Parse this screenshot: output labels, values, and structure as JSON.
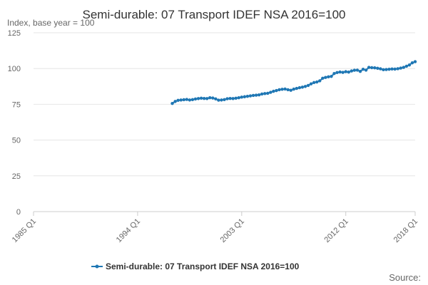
{
  "chart_data": {
    "type": "line",
    "title": "Semi-durable: 07 Transport IDEF NSA 2016=100",
    "y_label": "Index, base year = 100",
    "source": "Source:",
    "categories": [
      "1985 Q1",
      null,
      null,
      null,
      null,
      null,
      null,
      null,
      null,
      null,
      null,
      null,
      null,
      null,
      null,
      null,
      null,
      null,
      null,
      null,
      null,
      null,
      null,
      null,
      null,
      null,
      null,
      null,
      null,
      null,
      null,
      null,
      null,
      null,
      null,
      null,
      "1994 Q1",
      null,
      null,
      null,
      null,
      null,
      null,
      null,
      null,
      null,
      null,
      null,
      null,
      null,
      null,
      null,
      null,
      null,
      null,
      null,
      null,
      null,
      null,
      null,
      null,
      null,
      null,
      null,
      null,
      null,
      null,
      null,
      null,
      null,
      null,
      null,
      "2003 Q1",
      null,
      null,
      null,
      null,
      null,
      null,
      null,
      null,
      null,
      null,
      null,
      null,
      null,
      null,
      null,
      null,
      null,
      null,
      null,
      null,
      null,
      null,
      null,
      null,
      null,
      null,
      null,
      null,
      null,
      null,
      null,
      null,
      null,
      null,
      null,
      "2012 Q1",
      null,
      null,
      null,
      null,
      null,
      null,
      null,
      null,
      null,
      null,
      null,
      null,
      null,
      null,
      null,
      null,
      null,
      null,
      null,
      null,
      null,
      null,
      null,
      "2018 Q1"
    ],
    "series": [
      {
        "name": "Semi-durable: 07 Transport IDEF NSA 2016=100",
        "color": "#1f77b4",
        "values": [
          null,
          null,
          null,
          null,
          null,
          null,
          null,
          null,
          null,
          null,
          null,
          null,
          null,
          null,
          null,
          null,
          null,
          null,
          null,
          null,
          null,
          null,
          null,
          null,
          null,
          null,
          null,
          null,
          null,
          null,
          null,
          null,
          null,
          null,
          null,
          null,
          null,
          null,
          null,
          null,
          null,
          null,
          null,
          null,
          null,
          null,
          null,
          null,
          75.6,
          77,
          77.8,
          78,
          78.2,
          78.4,
          78,
          78.3,
          78.7,
          79,
          79.3,
          79.1,
          79,
          79.6,
          79.4,
          78.8,
          77.9,
          78,
          78.3,
          78.9,
          79.1,
          79,
          79.3,
          79.6,
          80,
          80.3,
          80.6,
          80.9,
          81.2,
          81.4,
          81.6,
          82.2,
          82.5,
          82.7,
          83.4,
          84.1,
          84.6,
          85.2,
          85.5,
          85.7,
          85.2,
          84.8,
          85.6,
          86.1,
          86.6,
          87,
          87.5,
          88.2,
          89.3,
          90.2,
          90.6,
          91.4,
          93.2,
          93.8,
          94.2,
          94.5,
          96.5,
          97.2,
          97.6,
          97.3,
          97.8,
          97.5,
          98.3,
          98.8,
          98.9,
          98,
          99.5,
          98.9,
          100.8,
          100.6,
          100.5,
          100.2,
          99.8,
          99.2,
          99.3,
          99.5,
          99.7,
          99.6,
          99.9,
          100.3,
          100.8,
          101.6,
          102.5,
          104,
          104.8
        ]
      }
    ],
    "ylim": [
      0,
      125
    ],
    "yticks": [
      0,
      25,
      50,
      75,
      100,
      125
    ],
    "grid": true
  }
}
